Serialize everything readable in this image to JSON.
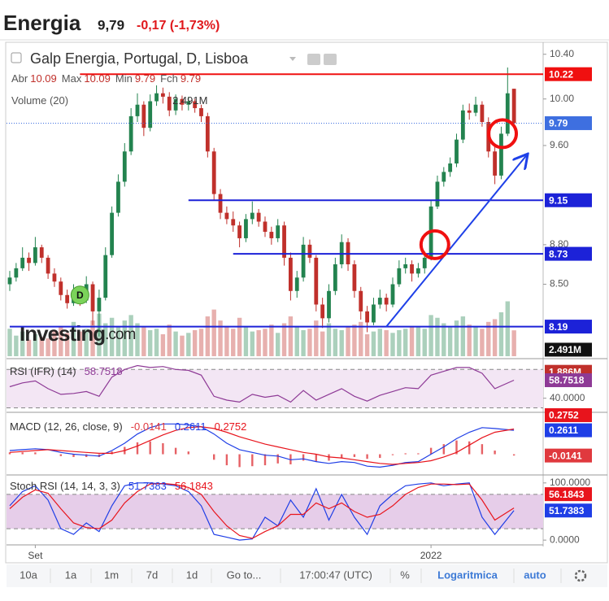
{
  "header": {
    "title": "Energia",
    "price": "9,79",
    "change": "-0,17 (-1,73%)"
  },
  "chart_data": [
    {
      "type": "candlestick",
      "title": "Galp Energia, Portugal, D, Lisboa",
      "ohlc_legend": [
        {
          "label": "Abr",
          "value": 10.09
        },
        {
          "label": "Max",
          "value": 10.09
        },
        {
          "label": "Min",
          "value": 9.79
        },
        {
          "label": "Fch",
          "value": 9.79
        }
      ],
      "ohlc": [
        [
          8.5,
          8.6,
          8.45,
          8.55
        ],
        [
          8.55,
          8.66,
          8.52,
          8.62
        ],
        [
          8.62,
          8.78,
          8.6,
          8.7
        ],
        [
          8.7,
          8.74,
          8.6,
          8.66
        ],
        [
          8.66,
          8.86,
          8.64,
          8.78
        ],
        [
          8.78,
          8.8,
          8.66,
          8.7
        ],
        [
          8.7,
          8.72,
          8.54,
          8.58
        ],
        [
          8.58,
          8.62,
          8.48,
          8.52
        ],
        [
          8.52,
          8.55,
          8.38,
          8.42
        ],
        [
          8.42,
          8.46,
          8.32,
          8.36
        ],
        [
          8.36,
          8.5,
          8.34,
          8.45
        ],
        [
          8.45,
          8.48,
          8.34,
          8.38
        ],
        [
          8.38,
          8.56,
          8.36,
          8.5
        ],
        [
          8.5,
          8.52,
          8.2,
          8.3
        ],
        [
          8.3,
          8.46,
          8.12,
          8.4
        ],
        [
          8.4,
          8.78,
          8.38,
          8.72
        ],
        [
          8.72,
          9.1,
          8.7,
          9.05
        ],
        [
          9.05,
          9.36,
          9.02,
          9.3
        ],
        [
          9.3,
          9.62,
          9.26,
          9.55
        ],
        [
          9.55,
          9.92,
          9.52,
          9.85
        ],
        [
          9.85,
          10.05,
          9.8,
          9.95
        ],
        [
          9.95,
          9.98,
          9.68,
          9.75
        ],
        [
          9.75,
          10.04,
          9.72,
          9.98
        ],
        [
          9.98,
          10.12,
          9.94,
          10.05
        ],
        [
          10.05,
          10.1,
          9.96,
          10.02
        ],
        [
          10.02,
          10.06,
          9.85,
          9.9
        ],
        [
          9.9,
          10.04,
          9.86,
          10.0
        ],
        [
          10.0,
          10.03,
          9.9,
          9.95
        ],
        [
          9.95,
          10.02,
          9.9,
          9.98
        ],
        [
          9.98,
          10.0,
          9.88,
          9.92
        ],
        [
          9.92,
          9.95,
          9.8,
          9.85
        ],
        [
          9.85,
          9.88,
          9.5,
          9.55
        ],
        [
          9.55,
          9.58,
          9.15,
          9.2
        ],
        [
          9.2,
          9.24,
          9.0,
          9.05
        ],
        [
          9.05,
          9.1,
          8.96,
          9.0
        ],
        [
          9.0,
          9.06,
          8.9,
          8.95
        ],
        [
          8.95,
          8.98,
          8.78,
          8.85
        ],
        [
          8.85,
          9.04,
          8.82,
          9.0
        ],
        [
          9.0,
          9.14,
          8.96,
          9.05
        ],
        [
          9.05,
          9.08,
          8.94,
          8.98
        ],
        [
          8.98,
          9.02,
          8.86,
          8.9
        ],
        [
          8.9,
          8.94,
          8.8,
          8.85
        ],
        [
          8.85,
          9.0,
          8.82,
          8.95
        ],
        [
          8.95,
          8.98,
          8.64,
          8.7
        ],
        [
          8.7,
          8.74,
          8.38,
          8.45
        ],
        [
          8.45,
          8.6,
          8.4,
          8.55
        ],
        [
          8.55,
          8.86,
          8.52,
          8.8
        ],
        [
          8.8,
          8.84,
          8.66,
          8.7
        ],
        [
          8.7,
          8.72,
          8.3,
          8.35
        ],
        [
          8.35,
          8.4,
          8.18,
          8.25
        ],
        [
          8.25,
          8.5,
          8.22,
          8.45
        ],
        [
          8.45,
          8.7,
          8.42,
          8.65
        ],
        [
          8.65,
          8.88,
          8.62,
          8.82
        ],
        [
          8.82,
          8.85,
          8.6,
          8.65
        ],
        [
          8.65,
          8.68,
          8.4,
          8.45
        ],
        [
          8.45,
          8.48,
          8.24,
          8.3
        ],
        [
          8.3,
          8.34,
          8.15,
          8.22
        ],
        [
          8.22,
          8.4,
          8.2,
          8.35
        ],
        [
          8.35,
          8.46,
          8.32,
          8.4
        ],
        [
          8.4,
          8.43,
          8.3,
          8.35
        ],
        [
          8.35,
          8.55,
          8.33,
          8.5
        ],
        [
          8.5,
          8.68,
          8.48,
          8.62
        ],
        [
          8.62,
          8.7,
          8.58,
          8.65
        ],
        [
          8.65,
          8.68,
          8.52,
          8.58
        ],
        [
          8.58,
          8.66,
          8.55,
          8.62
        ],
        [
          8.62,
          8.75,
          8.58,
          8.7
        ],
        [
          8.7,
          9.15,
          8.68,
          9.1
        ],
        [
          9.1,
          9.35,
          9.08,
          9.3
        ],
        [
          9.3,
          9.42,
          9.26,
          9.38
        ],
        [
          9.38,
          9.5,
          9.34,
          9.45
        ],
        [
          9.45,
          9.7,
          9.42,
          9.65
        ],
        [
          9.65,
          9.95,
          9.62,
          9.9
        ],
        [
          9.9,
          9.96,
          9.82,
          9.88
        ],
        [
          9.88,
          10.02,
          9.85,
          9.95
        ],
        [
          9.95,
          9.98,
          9.76,
          9.8
        ],
        [
          9.8,
          9.84,
          9.5,
          9.55
        ],
        [
          9.55,
          9.6,
          9.28,
          9.35
        ],
        [
          9.35,
          9.76,
          9.32,
          9.7
        ],
        [
          9.7,
          10.28,
          9.68,
          10.05
        ],
        [
          10.09,
          10.09,
          9.79,
          9.79
        ]
      ],
      "up_color": "#23834f",
      "down_color": "#c0302b",
      "log_scale": true,
      "ylim": [
        7.98,
        10.45
      ],
      "yticks": [
        {
          "value": 10.4,
          "label": "10.40"
        },
        {
          "value": 10,
          "label": "10.00"
        },
        {
          "value": 9.6,
          "label": "9.60"
        },
        {
          "value": 8.8,
          "label": "8.80"
        },
        {
          "value": 8.5,
          "label": "8.50"
        }
      ],
      "xticks": [
        {
          "value": 4,
          "label": "Set"
        },
        {
          "value": 66,
          "label": "2022"
        }
      ],
      "hlines": [
        {
          "value": 10.22,
          "color": "#f01010",
          "start": 11
        },
        {
          "value": 9.15,
          "color": "#1c22d8",
          "start": 28
        },
        {
          "value": 8.73,
          "color": "#1c22d8",
          "start": 35
        },
        {
          "value": 8.19,
          "color": "#1c22d8",
          "start": 0
        }
      ],
      "last_price": {
        "value": 9.79,
        "color": "#3e6fe0"
      },
      "trendline": {
        "x": [
          59,
          81
        ],
        "y": [
          8.19,
          9.52
        ],
        "color": "#1e40e8"
      },
      "circles": {
        "x": [
          66.6,
          77.2
        ],
        "y": [
          8.8,
          9.7
        ],
        "color": "#f01010"
      },
      "events": [
        {
          "label": "D",
          "x": 11,
          "y": 8.42
        }
      ],
      "volume": {
        "name": "Volume (20)",
        "values": [
          2.0,
          1.5,
          1.8,
          1.2,
          1.6,
          1.4,
          1.3,
          1.9,
          2.2,
          1.7,
          2.5,
          1.8,
          2.0,
          2.6,
          3.1,
          2.4,
          2.8,
          2.2,
          2.6,
          3.0,
          2.4,
          2.1,
          1.9,
          2.0,
          1.6,
          2.3,
          1.8,
          1.5,
          1.7,
          1.9,
          2.0,
          2.9,
          3.4,
          2.6,
          2.2,
          2.0,
          2.8,
          2.1,
          1.8,
          1.9,
          2.0,
          2.3,
          1.7,
          2.4,
          2.9,
          2.2,
          1.9,
          2.0,
          2.6,
          1.8,
          2.4,
          2.0,
          1.9,
          2.1,
          2.3,
          2.5,
          1.6,
          1.8,
          2.0,
          1.9,
          1.7,
          1.9,
          2.0,
          2.2,
          2.1,
          2.0,
          3.0,
          2.8,
          2.4,
          2.1,
          2.6,
          2.9,
          2.3,
          2.2,
          2.0,
          2.5,
          2.7,
          3.2,
          4.0,
          1.886
        ],
        "last_label": "1.886M"
      },
      "volume_ma": {
        "value": 2.491,
        "label": "2.491M"
      },
      "volume_ylim": [
        0,
        22.4
      ],
      "watermark": [
        "Investing",
        ".com"
      ]
    },
    {
      "type": "line",
      "title": "RSI (IFR) (14)",
      "color": "#8e3a96",
      "band_fill": "#f3e6f4",
      "bands": [
        70,
        30
      ],
      "ylim": [
        27,
        77
      ],
      "yticks": [
        {
          "value": 40,
          "label": "40.0000"
        }
      ],
      "x": [
        0,
        2,
        4,
        6,
        8,
        10,
        12,
        14,
        16,
        18,
        20,
        22,
        24,
        26,
        28,
        30,
        32,
        34,
        36,
        38,
        40,
        42,
        44,
        46,
        48,
        50,
        52,
        54,
        56,
        58,
        60,
        62,
        64,
        66,
        68,
        70,
        72,
        74,
        76,
        79
      ],
      "series": [
        {
          "color": "#8e3a96",
          "values": [
            52,
            56,
            58,
            50,
            44,
            45,
            47,
            42,
            62,
            70,
            74,
            72,
            73,
            70,
            69,
            64,
            42,
            38,
            36,
            44,
            41,
            43,
            36,
            48,
            38,
            44,
            50,
            42,
            37,
            43,
            47,
            51,
            50,
            64,
            68,
            72,
            72,
            66,
            50,
            58.7518
          ]
        }
      ]
    },
    {
      "type": "macd",
      "title": "MACD (12, 26, close, 9)",
      "ylim": [
        -0.19,
        0.43
      ],
      "x": [
        0,
        2,
        4,
        6,
        8,
        10,
        12,
        14,
        16,
        18,
        20,
        22,
        24,
        26,
        28,
        30,
        32,
        34,
        36,
        38,
        40,
        42,
        44,
        46,
        48,
        50,
        52,
        54,
        56,
        58,
        60,
        62,
        64,
        66,
        68,
        70,
        72,
        74,
        76,
        79
      ],
      "histogram": {
        "color": "#e0393e",
        "values": [
          0.02,
          0.02,
          0.02,
          0.0,
          -0.02,
          -0.03,
          -0.03,
          -0.03,
          0.03,
          0.08,
          0.13,
          0.14,
          0.12,
          0.07,
          0.03,
          0.0,
          -0.06,
          -0.12,
          -0.14,
          -0.13,
          -0.12,
          -0.1,
          -0.11,
          -0.07,
          -0.08,
          -0.07,
          -0.04,
          -0.03,
          -0.05,
          -0.04,
          -0.01,
          0.01,
          0.01,
          0.07,
          0.11,
          0.15,
          0.14,
          0.11,
          0.04,
          -0.0141
        ]
      },
      "series": [
        {
          "color": "#1f3ee6",
          "values": [
            0.04,
            0.05,
            0.06,
            0.05,
            0.02,
            0.0,
            -0.01,
            -0.02,
            0.04,
            0.12,
            0.22,
            0.29,
            0.33,
            0.33,
            0.32,
            0.3,
            0.22,
            0.12,
            0.05,
            0.02,
            -0.01,
            -0.02,
            -0.06,
            -0.05,
            -0.08,
            -0.1,
            -0.08,
            -0.09,
            -0.13,
            -0.14,
            -0.12,
            -0.09,
            -0.08,
            0.0,
            0.08,
            0.17,
            0.24,
            0.29,
            0.28,
            0.2611
          ]
        },
        {
          "color": "#e8141c",
          "values": [
            0.02,
            0.03,
            0.04,
            0.05,
            0.04,
            0.03,
            0.02,
            0.01,
            0.01,
            0.04,
            0.09,
            0.15,
            0.21,
            0.26,
            0.29,
            0.3,
            0.28,
            0.24,
            0.19,
            0.15,
            0.11,
            0.08,
            0.05,
            0.02,
            0.0,
            -0.03,
            -0.04,
            -0.06,
            -0.08,
            -0.1,
            -0.11,
            -0.1,
            -0.09,
            -0.07,
            -0.03,
            0.02,
            0.1,
            0.18,
            0.24,
            0.2752
          ]
        }
      ]
    },
    {
      "type": "line",
      "title": "Stoch RSI (14, 14, 3, 3)",
      "band_fill": "#e6cde9",
      "bands": [
        80,
        20
      ],
      "ylim": [
        -5.5,
        109.7
      ],
      "yticks": [
        {
          "value": 100,
          "label": "100.0000"
        },
        {
          "value": 0,
          "label": "0.0000"
        }
      ],
      "x": [
        0,
        2,
        4,
        6,
        8,
        10,
        12,
        14,
        16,
        18,
        20,
        22,
        24,
        26,
        28,
        30,
        32,
        34,
        36,
        38,
        40,
        42,
        44,
        46,
        48,
        50,
        52,
        54,
        56,
        58,
        60,
        62,
        64,
        66,
        68,
        70,
        72,
        74,
        76,
        79
      ],
      "series": [
        {
          "color": "#1f3ee6",
          "values": [
            60,
            85,
            95,
            70,
            20,
            10,
            30,
            15,
            60,
            95,
            100,
            100,
            98,
            95,
            85,
            60,
            10,
            5,
            0,
            2,
            40,
            25,
            70,
            40,
            90,
            35,
            80,
            40,
            10,
            60,
            80,
            95,
            98,
            100,
            95,
            98,
            100,
            40,
            10,
            51.7383
          ]
        },
        {
          "color": "#e8141c",
          "values": [
            55,
            75,
            88,
            82,
            55,
            30,
            22,
            20,
            35,
            65,
            85,
            98,
            99,
            97,
            92,
            80,
            50,
            25,
            8,
            3,
            15,
            25,
            45,
            45,
            65,
            55,
            65,
            50,
            40,
            45,
            60,
            80,
            92,
            98,
            98,
            97,
            98,
            70,
            35,
            56.1843
          ]
        }
      ]
    }
  ],
  "toolbar": {
    "ranges": [
      "10a",
      "1a",
      "1m",
      "7d",
      "1d"
    ],
    "goto": "Go to...",
    "time": "17:00:47 (UTC)",
    "percent": "%",
    "log": "Logaritmica",
    "auto": "auto"
  }
}
